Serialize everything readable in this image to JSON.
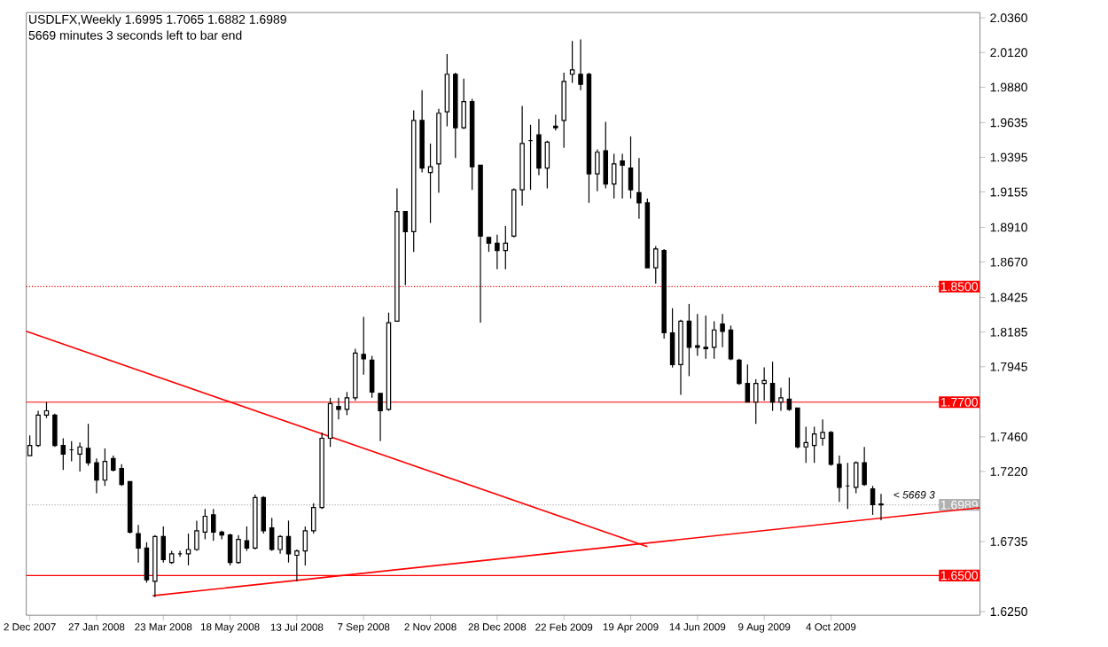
{
  "chart_data": {
    "type": "candlestick",
    "title": "USDLFX,Weekly  1.6995 1.7065 1.6882 1.6989",
    "subtitle": "5669 minutes 3 seconds left to bar end",
    "x": [
      "2007-12-02",
      "2007-12-09",
      "2007-12-16",
      "2007-12-23",
      "2007-12-30",
      "2008-01-06",
      "2008-01-13",
      "2008-01-20",
      "2008-01-27",
      "2008-02-03",
      "2008-02-10",
      "2008-02-17",
      "2008-02-24",
      "2008-03-02",
      "2008-03-09",
      "2008-03-16",
      "2008-03-23",
      "2008-03-30",
      "2008-04-06",
      "2008-04-13",
      "2008-04-20",
      "2008-04-27",
      "2008-05-04",
      "2008-05-11",
      "2008-05-18",
      "2008-05-25",
      "2008-06-01",
      "2008-06-08",
      "2008-06-15",
      "2008-06-22",
      "2008-06-29",
      "2008-07-06",
      "2008-07-13",
      "2008-07-20",
      "2008-07-27",
      "2008-08-03",
      "2008-08-10",
      "2008-08-17",
      "2008-08-24",
      "2008-08-31",
      "2008-09-07",
      "2008-09-14",
      "2008-09-21",
      "2008-09-28",
      "2008-10-05",
      "2008-10-12",
      "2008-10-19",
      "2008-10-26",
      "2008-11-02",
      "2008-11-09",
      "2008-11-16",
      "2008-11-23",
      "2008-11-30",
      "2008-12-07",
      "2008-12-14",
      "2008-12-21",
      "2008-12-28",
      "2009-01-04",
      "2009-01-11",
      "2009-01-18",
      "2009-01-25",
      "2009-02-01",
      "2009-02-08",
      "2009-02-15",
      "2009-02-22",
      "2009-03-01",
      "2009-03-08",
      "2009-03-15",
      "2009-03-22",
      "2009-03-29",
      "2009-04-05",
      "2009-04-12",
      "2009-04-19",
      "2009-04-26",
      "2009-05-03",
      "2009-05-10",
      "2009-05-17",
      "2009-05-24",
      "2009-05-31",
      "2009-06-07",
      "2009-06-14",
      "2009-06-21",
      "2009-06-28",
      "2009-07-05",
      "2009-07-12",
      "2009-07-19",
      "2009-07-26",
      "2009-08-02",
      "2009-08-09",
      "2009-08-16",
      "2009-08-23",
      "2009-08-30",
      "2009-09-06",
      "2009-09-13",
      "2009-09-20",
      "2009-09-27",
      "2009-10-04",
      "2009-10-11",
      "2009-10-18",
      "2009-10-25",
      "2009-11-01",
      "2009-11-08",
      "2009-11-15"
    ],
    "ohlc": [
      [
        1.733,
        1.747,
        1.733,
        1.74
      ],
      [
        1.74,
        1.764,
        1.739,
        1.761
      ],
      [
        1.761,
        1.77,
        1.759,
        1.764
      ],
      [
        1.761,
        1.762,
        1.739,
        1.74
      ],
      [
        1.74,
        1.745,
        1.723,
        1.734
      ],
      [
        1.737,
        1.743,
        1.729,
        1.737
      ],
      [
        1.734,
        1.742,
        1.722,
        1.739
      ],
      [
        1.738,
        1.755,
        1.726,
        1.728
      ],
      [
        1.728,
        1.731,
        1.707,
        1.716
      ],
      [
        1.716,
        1.738,
        1.712,
        1.729
      ],
      [
        1.731,
        1.733,
        1.722,
        1.723
      ],
      [
        1.724,
        1.727,
        1.712,
        1.713
      ],
      [
        1.715,
        1.715,
        1.679,
        1.68
      ],
      [
        1.679,
        1.685,
        1.659,
        1.669
      ],
      [
        1.669,
        1.673,
        1.645,
        1.647
      ],
      [
        1.646,
        1.678,
        1.635,
        1.677
      ],
      [
        1.677,
        1.684,
        1.659,
        1.661
      ],
      [
        1.659,
        1.667,
        1.658,
        1.665
      ],
      [
        1.665,
        1.667,
        1.663,
        1.665
      ],
      [
        1.665,
        1.679,
        1.657,
        1.668
      ],
      [
        1.668,
        1.688,
        1.667,
        1.681
      ],
      [
        1.68,
        1.696,
        1.675,
        1.691
      ],
      [
        1.692,
        1.696,
        1.674,
        1.68
      ],
      [
        1.68,
        1.681,
        1.675,
        1.678
      ],
      [
        1.678,
        1.679,
        1.657,
        1.659
      ],
      [
        1.659,
        1.678,
        1.658,
        1.675
      ],
      [
        1.674,
        1.684,
        1.667,
        1.669
      ],
      [
        1.669,
        1.706,
        1.668,
        1.704
      ],
      [
        1.704,
        1.705,
        1.679,
        1.681
      ],
      [
        1.683,
        1.69,
        1.667,
        1.668
      ],
      [
        1.668,
        1.678,
        1.665,
        1.677
      ],
      [
        1.677,
        1.688,
        1.659,
        1.665
      ],
      [
        1.664,
        1.668,
        1.646,
        1.667
      ],
      [
        1.667,
        1.684,
        1.657,
        1.681
      ],
      [
        1.681,
        1.7,
        1.679,
        1.697
      ],
      [
        1.697,
        1.749,
        1.696,
        1.745
      ],
      [
        1.745,
        1.773,
        1.739,
        1.769
      ],
      [
        1.767,
        1.773,
        1.758,
        1.765
      ],
      [
        1.765,
        1.777,
        1.761,
        1.773
      ],
      [
        1.773,
        1.807,
        1.771,
        1.804
      ],
      [
        1.803,
        1.829,
        1.789,
        1.8
      ],
      [
        1.799,
        1.802,
        1.773,
        1.777
      ],
      [
        1.776,
        1.776,
        1.743,
        1.764
      ],
      [
        1.765,
        1.832,
        1.764,
        1.825
      ],
      [
        1.826,
        1.918,
        1.826,
        1.902
      ],
      [
        1.902,
        1.902,
        1.851,
        1.888
      ],
      [
        1.888,
        1.972,
        1.874,
        1.965
      ],
      [
        1.965,
        1.986,
        1.929,
        1.932
      ],
      [
        1.929,
        1.949,
        1.894,
        1.933
      ],
      [
        1.935,
        1.973,
        1.915,
        1.97
      ],
      [
        1.971,
        2.011,
        1.961,
        1.997
      ],
      [
        1.997,
        1.998,
        1.939,
        1.96
      ],
      [
        1.96,
        1.994,
        1.959,
        1.978
      ],
      [
        1.978,
        1.98,
        1.917,
        1.933
      ],
      [
        1.934,
        1.934,
        1.825,
        1.885
      ],
      [
        1.884,
        1.884,
        1.874,
        1.88
      ],
      [
        1.88,
        1.886,
        1.862,
        1.875
      ],
      [
        1.875,
        1.892,
        1.862,
        1.88
      ],
      [
        1.885,
        1.918,
        1.884,
        1.917
      ],
      [
        1.917,
        1.975,
        1.906,
        1.949
      ],
      [
        1.951,
        1.962,
        1.917,
        1.951
      ],
      [
        1.955,
        1.966,
        1.927,
        1.932
      ],
      [
        1.932,
        1.951,
        1.918,
        1.95
      ],
      [
        1.961,
        1.969,
        1.958,
        1.96
      ],
      [
        1.965,
        1.998,
        1.946,
        1.992
      ],
      [
        1.997,
        2.02,
        1.991,
        2.0
      ],
      [
        1.997,
        2.021,
        1.986,
        1.99
      ],
      [
        1.997,
        1.998,
        1.908,
        1.928
      ],
      [
        1.928,
        1.945,
        1.916,
        1.943
      ],
      [
        1.944,
        1.964,
        1.918,
        1.921
      ],
      [
        1.921,
        1.942,
        1.911,
        1.935
      ],
      [
        1.937,
        1.942,
        1.911,
        1.934
      ],
      [
        1.932,
        1.954,
        1.911,
        1.917
      ],
      [
        1.915,
        1.939,
        1.897,
        1.908
      ],
      [
        1.908,
        1.911,
        1.863,
        1.863
      ],
      [
        1.863,
        1.878,
        1.852,
        1.876
      ],
      [
        1.875,
        1.876,
        1.814,
        1.818
      ],
      [
        1.818,
        1.835,
        1.794,
        1.796
      ],
      [
        1.796,
        1.827,
        1.775,
        1.826
      ],
      [
        1.826,
        1.838,
        1.788,
        1.808
      ],
      [
        1.809,
        1.831,
        1.802,
        1.808
      ],
      [
        1.808,
        1.83,
        1.8,
        1.807
      ],
      [
        1.808,
        1.826,
        1.8,
        1.82
      ],
      [
        1.824,
        1.831,
        1.808,
        1.819
      ],
      [
        1.82,
        1.823,
        1.799,
        1.8
      ],
      [
        1.799,
        1.8,
        1.782,
        1.783
      ],
      [
        1.783,
        1.796,
        1.77,
        1.77
      ],
      [
        1.77,
        1.786,
        1.755,
        1.783
      ],
      [
        1.783,
        1.794,
        1.771,
        1.785
      ],
      [
        1.783,
        1.798,
        1.764,
        1.77
      ],
      [
        1.77,
        1.78,
        1.764,
        1.773
      ],
      [
        1.772,
        1.787,
        1.764,
        1.765
      ],
      [
        1.766,
        1.766,
        1.738,
        1.739
      ],
      [
        1.739,
        1.753,
        1.728,
        1.742
      ],
      [
        1.74,
        1.753,
        1.728,
        1.748
      ],
      [
        1.745,
        1.758,
        1.74,
        1.749
      ],
      [
        1.749,
        1.75,
        1.726,
        1.727
      ],
      [
        1.727,
        1.733,
        1.701,
        1.711
      ],
      [
        1.712,
        1.728,
        1.696,
        1.712
      ],
      [
        1.711,
        1.729,
        1.707,
        1.728
      ],
      [
        1.728,
        1.739,
        1.712,
        1.713
      ],
      [
        1.71,
        1.712,
        1.692,
        1.699
      ],
      [
        1.6995,
        1.7065,
        1.6882,
        1.6989
      ]
    ],
    "series": [
      {
        "type": "line",
        "color": "#ff0000",
        "x": [
          "2007-11-29",
          "2009-05-03"
        ],
        "values": [
          1.819,
          1.67
        ]
      },
      {
        "type": "line",
        "color": "#ff0000",
        "x": [
          "2008-03-14",
          "2010-02-06"
        ],
        "values": [
          1.636,
          1.697
        ]
      }
    ],
    "xlim": [
      "2007-11-29",
      "2010-02-06"
    ],
    "xticks": [
      {
        "value": "2007-12-02",
        "label": "2 Dec 2007"
      },
      {
        "value": "2008-01-27",
        "label": "27 Jan 2008"
      },
      {
        "value": "2008-03-23",
        "label": "23 Mar 2008"
      },
      {
        "value": "2008-05-18",
        "label": "18 May 2008"
      },
      {
        "value": "2008-07-13",
        "label": "13 Jul 2008"
      },
      {
        "value": "2008-09-07",
        "label": "7 Sep 2008"
      },
      {
        "value": "2008-11-02",
        "label": "2 Nov 2008"
      },
      {
        "value": "2008-12-28",
        "label": "28 Dec 2008"
      },
      {
        "value": "2009-02-22",
        "label": "22 Feb 2009"
      },
      {
        "value": "2009-04-19",
        "label": "19 Apr 2009"
      },
      {
        "value": "2009-06-14",
        "label": "14 Jun 2009"
      },
      {
        "value": "2009-08-09",
        "label": "9 Aug 2009"
      },
      {
        "value": "2009-10-04",
        "label": "4 Oct 2009"
      }
    ],
    "ylim": [
      1.6225,
      2.0397
    ],
    "yticks": [
      {
        "value": 2.036,
        "label": "2.0360"
      },
      {
        "value": 2.012,
        "label": "2.0120"
      },
      {
        "value": 1.988,
        "label": "1.9880"
      },
      {
        "value": 1.9635,
        "label": "1.9635"
      },
      {
        "value": 1.9395,
        "label": "1.9395"
      },
      {
        "value": 1.9155,
        "label": "1.9155"
      },
      {
        "value": 1.891,
        "label": "1.8910"
      },
      {
        "value": 1.867,
        "label": "1.8670"
      },
      {
        "value": 1.8425,
        "label": "1.8425"
      },
      {
        "value": 1.8185,
        "label": "1.8185"
      },
      {
        "value": 1.7945,
        "label": "1.7945"
      },
      {
        "value": 1.746,
        "label": "1.7460"
      },
      {
        "value": 1.722,
        "label": "1.7220"
      },
      {
        "value": 1.6735,
        "label": "1.6735"
      },
      {
        "value": 1.625,
        "label": "1.6250"
      }
    ],
    "ref_lines": [
      {
        "axis": "y",
        "value": 1.85,
        "label": "1.8500",
        "color": "#ff0000",
        "line_style": "dotted"
      },
      {
        "axis": "y",
        "value": 1.77,
        "label": "1.7700",
        "color": "#ff0000",
        "line_style": "solid"
      },
      {
        "axis": "y",
        "value": 1.6989,
        "label": "1.6989",
        "color": "#b0b0b0",
        "line_style": "dotted"
      },
      {
        "axis": "y",
        "value": 1.65,
        "label": "1.6500",
        "color": "#ff0000",
        "line_style": "solid"
      }
    ],
    "annotations": [
      "< 5669 3"
    ]
  }
}
